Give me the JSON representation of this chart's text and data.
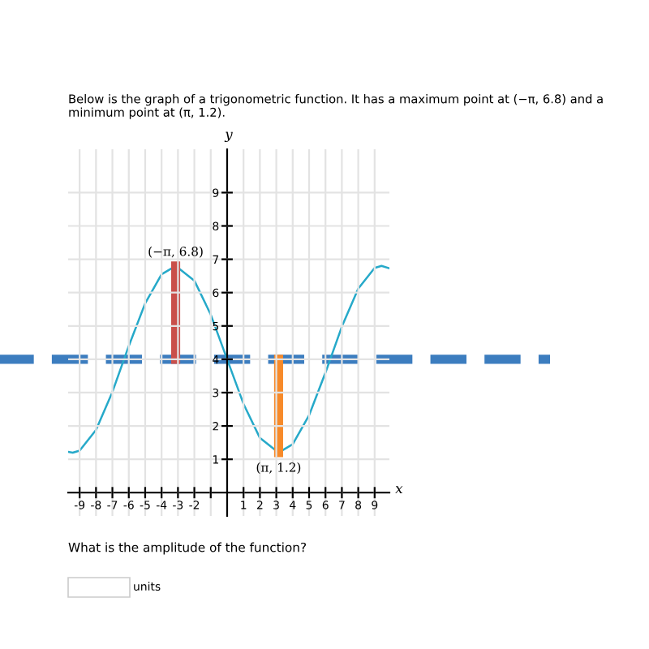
{
  "chart_data": {
    "type": "line",
    "title": "Below is the graph of a trigonometric function. It has a maximum point at (−π, 6.8) and a minimum point at (π, 1.2).",
    "xlabel": "x",
    "ylabel": "y",
    "series": [
      {
        "color": "#26a9c9",
        "x": [
          -9.7,
          -9.42,
          -9,
          -8,
          -7,
          -6,
          -5,
          -4,
          -3.14,
          -2,
          -1,
          0,
          1,
          2,
          3.14,
          4,
          5,
          6,
          7,
          8,
          9,
          9.42,
          9.9
        ],
        "values": [
          1.22,
          1.2,
          1.26,
          1.88,
          3.02,
          4.4,
          5.68,
          6.55,
          6.8,
          6.36,
          5.34,
          4,
          2.66,
          1.64,
          1.2,
          1.45,
          2.32,
          3.6,
          4.98,
          6.12,
          6.74,
          6.8,
          6.73
        ]
      },
      {
        "color": "#c94f4a",
        "x": [
          -3.14,
          -3.14
        ],
        "values": [
          4,
          6.8
        ]
      },
      {
        "color": "#f78a2a",
        "x": [
          3.14,
          3.14
        ],
        "values": [
          4,
          1.2
        ]
      }
    ],
    "ref_lines": [
      {
        "axis": "y",
        "value": 4,
        "color": "#3c7dbf",
        "line_style": "dashed"
      }
    ],
    "annotations": [
      {
        "text": "(−π, 6.8)",
        "x": -3.14,
        "y": 6.8
      },
      {
        "text": "(π, 1.2)",
        "x": 3.14,
        "y": 1.2
      },
      "What is the amplitude of the function?",
      "units"
    ],
    "xlim": [
      -9.7,
      9.9
    ],
    "ylim": [
      -0.7,
      10.3
    ],
    "xticks": [
      -9,
      -8,
      -7,
      -6,
      -5,
      -4,
      -3,
      -2,
      {
        "value": -1,
        "label": null
      },
      1,
      2,
      3,
      4,
      5,
      6,
      7,
      8,
      9
    ],
    "yticks": [
      1,
      2,
      3,
      4,
      5,
      6,
      7,
      8,
      9
    ],
    "grid": true
  }
}
